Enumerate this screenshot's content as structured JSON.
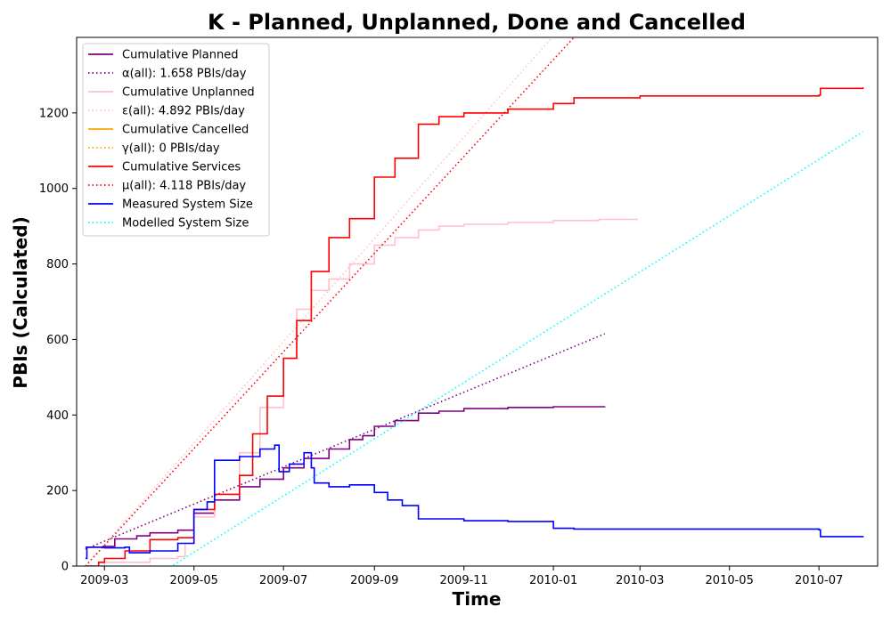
{
  "chart_data": {
    "type": "line",
    "title": "K - Planned, Unplanned, Done  and Cancelled",
    "xlabel": "Time",
    "ylabel": "PBIs (Calculated)",
    "xlim": [
      "2009-02-10",
      "2010-08-10"
    ],
    "ylim": [
      0,
      1400
    ],
    "x_ticks": [
      "2009-03",
      "2009-05",
      "2009-07",
      "2009-09",
      "2009-11",
      "2010-01",
      "2010-03",
      "2010-05",
      "2010-07"
    ],
    "y_ticks": [
      0,
      200,
      400,
      600,
      800,
      1000,
      1200
    ],
    "grid": false,
    "legend_position": "top-left",
    "series": [
      {
        "name": "Cumulative Planned",
        "color": "#800080",
        "style": "solid",
        "points": [
          [
            "2009-02-16",
            50
          ],
          [
            "2009-02-28",
            52
          ],
          [
            "2009-03-08",
            72
          ],
          [
            "2009-03-23",
            80
          ],
          [
            "2009-04-01",
            88
          ],
          [
            "2009-04-20",
            95
          ],
          [
            "2009-05-01",
            140
          ],
          [
            "2009-05-15",
            175
          ],
          [
            "2009-06-01",
            210
          ],
          [
            "2009-06-15",
            230
          ],
          [
            "2009-07-01",
            260
          ],
          [
            "2009-07-15",
            285
          ],
          [
            "2009-08-01",
            310
          ],
          [
            "2009-08-15",
            335
          ],
          [
            "2009-08-24",
            345
          ],
          [
            "2009-09-01",
            370
          ],
          [
            "2009-09-15",
            385
          ],
          [
            "2009-10-01",
            405
          ],
          [
            "2009-10-15",
            410
          ],
          [
            "2009-11-01",
            417
          ],
          [
            "2009-12-01",
            420
          ],
          [
            "2010-01-01",
            422
          ],
          [
            "2010-02-05",
            423
          ]
        ]
      },
      {
        "name": "α(all): 1.658 PBIs/day",
        "color": "#800080",
        "style": "dotted",
        "points": [
          [
            "2009-02-16",
            45
          ],
          [
            "2010-02-05",
            615
          ]
        ]
      },
      {
        "name": "Cumulative Unplanned",
        "color": "#ffc0cb",
        "style": "solid",
        "points": [
          [
            "2009-02-16",
            0
          ],
          [
            "2009-03-01",
            10
          ],
          [
            "2009-04-01",
            20
          ],
          [
            "2009-04-20",
            25
          ],
          [
            "2009-04-25",
            60
          ],
          [
            "2009-05-01",
            130
          ],
          [
            "2009-05-15",
            190
          ],
          [
            "2009-06-01",
            300
          ],
          [
            "2009-06-15",
            420
          ],
          [
            "2009-07-01",
            550
          ],
          [
            "2009-07-10",
            680
          ],
          [
            "2009-07-20",
            730
          ],
          [
            "2009-08-01",
            760
          ],
          [
            "2009-08-15",
            800
          ],
          [
            "2009-09-01",
            850
          ],
          [
            "2009-09-15",
            870
          ],
          [
            "2009-10-01",
            890
          ],
          [
            "2009-10-15",
            900
          ],
          [
            "2009-11-01",
            905
          ],
          [
            "2009-12-01",
            910
          ],
          [
            "2010-01-01",
            915
          ],
          [
            "2010-02-01",
            918
          ],
          [
            "2010-02-27",
            920
          ]
        ]
      },
      {
        "name": "ε(all): 4.892 PBIs/day",
        "color": "#ffc0cb",
        "style": "dotted",
        "points": [
          [
            "2009-02-16",
            0
          ],
          [
            "2009-12-31",
            1400
          ]
        ]
      },
      {
        "name": "Cumulative Cancelled",
        "color": "#ffa500",
        "style": "solid",
        "points": []
      },
      {
        "name": "γ(all): 0 PBIs/day",
        "color": "#ffa500",
        "style": "dotted",
        "points": []
      },
      {
        "name": "Cumulative Services",
        "color": "#ff0000",
        "style": "solid",
        "points": [
          [
            "2009-02-16",
            0
          ],
          [
            "2009-02-25",
            10
          ],
          [
            "2009-03-01",
            20
          ],
          [
            "2009-03-15",
            40
          ],
          [
            "2009-04-01",
            70
          ],
          [
            "2009-04-20",
            75
          ],
          [
            "2009-05-01",
            150
          ],
          [
            "2009-05-15",
            190
          ],
          [
            "2009-06-01",
            240
          ],
          [
            "2009-06-10",
            350
          ],
          [
            "2009-06-20",
            450
          ],
          [
            "2009-07-01",
            550
          ],
          [
            "2009-07-10",
            650
          ],
          [
            "2009-07-20",
            780
          ],
          [
            "2009-08-01",
            870
          ],
          [
            "2009-08-15",
            920
          ],
          [
            "2009-09-01",
            1030
          ],
          [
            "2009-09-15",
            1080
          ],
          [
            "2009-10-01",
            1170
          ],
          [
            "2009-10-15",
            1190
          ],
          [
            "2009-11-01",
            1200
          ],
          [
            "2009-12-01",
            1210
          ],
          [
            "2010-01-01",
            1225
          ],
          [
            "2010-01-15",
            1240
          ],
          [
            "2010-03-01",
            1245
          ],
          [
            "2010-07-01",
            1247
          ],
          [
            "2010-07-02",
            1265
          ],
          [
            "2010-07-31",
            1268
          ]
        ]
      },
      {
        "name": "μ(all): 4.118 PBIs/day",
        "color": "#ff0000",
        "style": "dotted",
        "points": [
          [
            "2009-02-16",
            0
          ],
          [
            "2010-01-15",
            1400
          ]
        ]
      },
      {
        "name": "Measured System Size",
        "color": "#0000ff",
        "style": "solid",
        "points": [
          [
            "2009-02-16",
            20
          ],
          [
            "2009-02-17",
            50
          ],
          [
            "2009-03-01",
            48
          ],
          [
            "2009-03-15",
            50
          ],
          [
            "2009-03-18",
            35
          ],
          [
            "2009-04-01",
            40
          ],
          [
            "2009-04-20",
            60
          ],
          [
            "2009-05-01",
            150
          ],
          [
            "2009-05-10",
            170
          ],
          [
            "2009-05-15",
            280
          ],
          [
            "2009-06-01",
            290
          ],
          [
            "2009-06-15",
            310
          ],
          [
            "2009-06-25",
            320
          ],
          [
            "2009-06-28",
            250
          ],
          [
            "2009-07-05",
            270
          ],
          [
            "2009-07-15",
            300
          ],
          [
            "2009-07-20",
            260
          ],
          [
            "2009-07-22",
            220
          ],
          [
            "2009-08-01",
            210
          ],
          [
            "2009-08-15",
            215
          ],
          [
            "2009-09-01",
            195
          ],
          [
            "2009-09-10",
            175
          ],
          [
            "2009-09-20",
            160
          ],
          [
            "2009-10-01",
            125
          ],
          [
            "2009-11-01",
            120
          ],
          [
            "2009-12-01",
            118
          ],
          [
            "2010-01-01",
            100
          ],
          [
            "2010-01-15",
            98
          ],
          [
            "2010-03-01",
            98
          ],
          [
            "2010-07-01",
            96
          ],
          [
            "2010-07-02",
            78
          ],
          [
            "2010-07-31",
            76
          ]
        ]
      },
      {
        "name": "Modelled System Size",
        "color": "#00ffff",
        "style": "dotted",
        "points": [
          [
            "2009-02-16",
            0
          ],
          [
            "2009-04-16",
            0
          ],
          [
            "2010-07-31",
            1150
          ]
        ]
      }
    ]
  }
}
